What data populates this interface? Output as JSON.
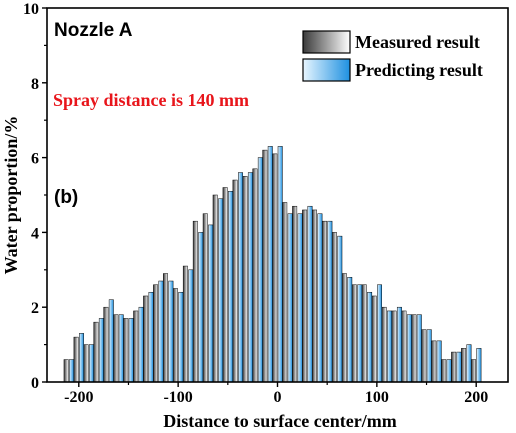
{
  "chart_data": {
    "type": "bar",
    "panel_title": "Nozzle A",
    "panel_label": "(b)",
    "annotation": "Spray distance is 140 mm",
    "annotation_color": "#e8151b",
    "xlabel": "Distance to surface center/mm",
    "ylabel": "Water proportion/%",
    "xlim": [
      -232,
      232
    ],
    "ylim": [
      0,
      10
    ],
    "x_ticks": [
      -200,
      -100,
      0,
      100,
      200
    ],
    "x_tick_labels": [
      "-200",
      "-100",
      "0",
      "100",
      "200"
    ],
    "y_ticks": [
      0,
      2,
      4,
      6,
      8,
      10
    ],
    "y_tick_labels": [
      "0",
      "2",
      "4",
      "6",
      "8",
      "10"
    ],
    "grid": false,
    "legend_position": "top-right",
    "series": [
      {
        "name": "Measured result",
        "color_dark": "#2b2b2b",
        "color_light": "#ffffff",
        "x": [
          -210,
          -200,
          -190,
          -180,
          -170,
          -160,
          -150,
          -140,
          -130,
          -120,
          -110,
          -100,
          -90,
          -80,
          -70,
          -60,
          -50,
          -40,
          -30,
          -20,
          -10,
          0,
          10,
          20,
          30,
          40,
          50,
          60,
          70,
          80,
          90,
          100,
          110,
          120,
          130,
          140,
          150,
          160,
          170,
          180,
          190,
          200
        ],
        "values": [
          0.6,
          1.2,
          1.0,
          1.6,
          2.0,
          1.8,
          1.7,
          1.9,
          2.3,
          2.6,
          2.9,
          2.5,
          3.1,
          4.3,
          4.5,
          5.0,
          5.2,
          5.4,
          5.5,
          5.7,
          6.2,
          6.1,
          4.8,
          4.7,
          4.6,
          4.6,
          4.3,
          4.0,
          2.9,
          2.6,
          2.6,
          2.3,
          2.0,
          1.9,
          1.9,
          1.8,
          1.4,
          1.1,
          0.6,
          0.8,
          0.9,
          0.6
        ]
      },
      {
        "name": "Predicting result",
        "color_dark": "#1e90e0",
        "color_light": "#e8f6ff",
        "x": [
          -210,
          -200,
          -190,
          -180,
          -170,
          -160,
          -150,
          -140,
          -130,
          -120,
          -110,
          -100,
          -90,
          -80,
          -70,
          -60,
          -50,
          -40,
          -30,
          -20,
          -10,
          0,
          10,
          20,
          30,
          40,
          50,
          60,
          70,
          80,
          90,
          100,
          110,
          120,
          130,
          140,
          150,
          160,
          170,
          180,
          190,
          200
        ],
        "values": [
          0.6,
          1.3,
          1.0,
          1.7,
          2.2,
          1.8,
          1.7,
          2.0,
          2.4,
          2.7,
          2.7,
          2.4,
          3.0,
          4.0,
          4.2,
          4.9,
          5.1,
          5.6,
          5.6,
          6.0,
          6.3,
          6.3,
          4.5,
          4.5,
          4.7,
          4.5,
          4.3,
          3.9,
          2.8,
          2.6,
          2.4,
          2.6,
          1.9,
          2.0,
          1.8,
          1.8,
          1.4,
          1.1,
          0.6,
          0.8,
          1.0,
          0.9
        ]
      }
    ]
  },
  "legend": {
    "measured_label": "Measured result",
    "predicting_label": "Predicting result"
  }
}
